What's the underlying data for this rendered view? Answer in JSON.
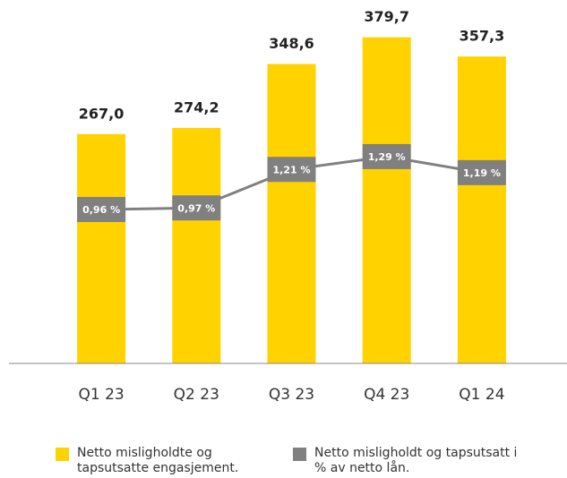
{
  "chart_data": {
    "type": "bar",
    "categories": [
      "Q1 23",
      "Q2 23",
      "Q3 23",
      "Q4 23",
      "Q1 24"
    ],
    "series": [
      {
        "name": "Netto misligholdte og tapsutsatte engasjement.",
        "color": "#ffd200",
        "values": [
          267.0,
          274.2,
          348.6,
          379.7,
          357.3
        ],
        "value_labels": [
          "267,0",
          "274,2",
          "348,6",
          "379,7",
          "357,3"
        ]
      },
      {
        "name": "Netto misligholdt og tapsutsatt i % av netto lån.",
        "color": "#808080",
        "type": "line",
        "axis": "y2",
        "values": [
          0.96,
          0.97,
          1.21,
          1.29,
          1.19
        ],
        "value_labels": [
          "0,96 %",
          "0,97 %",
          "1,21 %",
          "1,29 %",
          "1,19 %"
        ]
      }
    ],
    "ylim": [
      0,
      420
    ],
    "y2lim": [
      0,
      2.25
    ]
  }
}
